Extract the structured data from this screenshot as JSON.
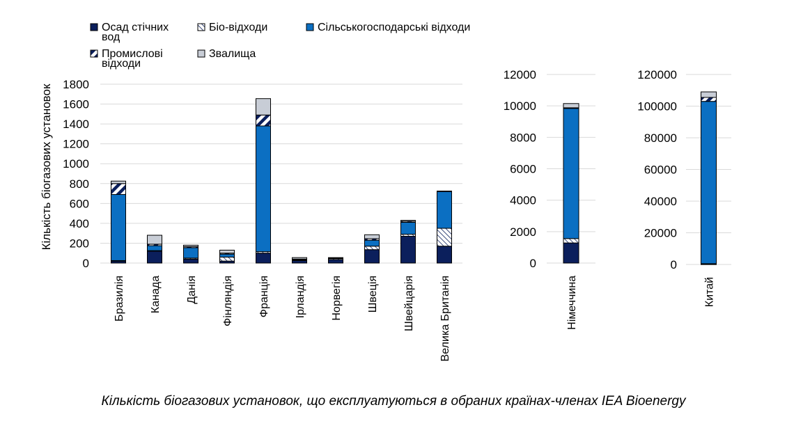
{
  "caption": "Кількість біогазових установок, що експлуатуються в обраних країнах-членах IEA Bioenergy",
  "colors": {
    "sewage": "#0b1f5c",
    "bio": "#0b1f5c",
    "agri": "#0b6fc2",
    "industrial": "#0b1f5c",
    "landfill": "#c8cdd6",
    "outline": "#000000",
    "grid": "#d9d9d9"
  },
  "chart_data": {
    "type": "bar",
    "stacked": true,
    "ylabel": "Кількість біогазових установок",
    "grid": true,
    "legend": {
      "placement": "top-left",
      "entries": [
        {
          "key": "sewage",
          "label_lines": [
            "Осад стічних",
            "вод"
          ],
          "pattern": "solid-dark"
        },
        {
          "key": "bio",
          "label_lines": [
            "Біо-відходи"
          ],
          "pattern": "diagonal-hatch"
        },
        {
          "key": "agri",
          "label_lines": [
            "Сільськогосподарські відходи"
          ],
          "pattern": "solid-blue"
        },
        {
          "key": "industrial",
          "label_lines": [
            "Промислові",
            "відходи"
          ],
          "pattern": "wide-diagonal-stripes"
        },
        {
          "key": "landfill",
          "label_lines": [
            "Звалища"
          ],
          "pattern": "solid-grey"
        }
      ]
    },
    "series_order": [
      "sewage",
      "bio",
      "agri",
      "industrial",
      "landfill"
    ],
    "panels": [
      {
        "ylim": [
          0,
          1800
        ],
        "yticks": [
          0,
          200,
          400,
          600,
          800,
          1000,
          1200,
          1400,
          1600,
          1800
        ],
        "categories": [
          "Бразилія",
          "Канада",
          "Данія",
          "Фінляндія",
          "Франція",
          "Ірландія",
          "Норвегія",
          "Швеція",
          "Швейцарія",
          "Велика Британія"
        ],
        "series": {
          "sewage": [
            20,
            120,
            40,
            20,
            100,
            25,
            35,
            135,
            270,
            170
          ],
          "bio": [
            5,
            5,
            10,
            40,
            15,
            5,
            10,
            35,
            20,
            180
          ],
          "agri": [
            665,
            50,
            105,
            30,
            1265,
            5,
            5,
            60,
            120,
            370
          ],
          "industrial": [
            110,
            15,
            10,
            10,
            110,
            5,
            5,
            15,
            10,
            5
          ],
          "landfill": [
            25,
            90,
            15,
            30,
            165,
            15,
            0,
            40,
            10,
            0
          ]
        }
      },
      {
        "ylim": [
          0,
          12000
        ],
        "yticks": [
          0,
          2000,
          4000,
          6000,
          8000,
          10000,
          12000
        ],
        "categories": [
          "Німеччина"
        ],
        "series": {
          "sewage": [
            1280
          ],
          "bio": [
            280
          ],
          "agri": [
            8280
          ],
          "industrial": [
            40
          ],
          "landfill": [
            270
          ]
        }
      },
      {
        "ylim": [
          0,
          120000
        ],
        "yticks": [
          0,
          20000,
          40000,
          60000,
          80000,
          100000,
          120000
        ],
        "categories": [
          "Китай"
        ],
        "series": {
          "sewage": [
            200
          ],
          "bio": [
            300
          ],
          "agri": [
            102500
          ],
          "industrial": [
            2500
          ],
          "landfill": [
            3500
          ]
        }
      }
    ]
  }
}
